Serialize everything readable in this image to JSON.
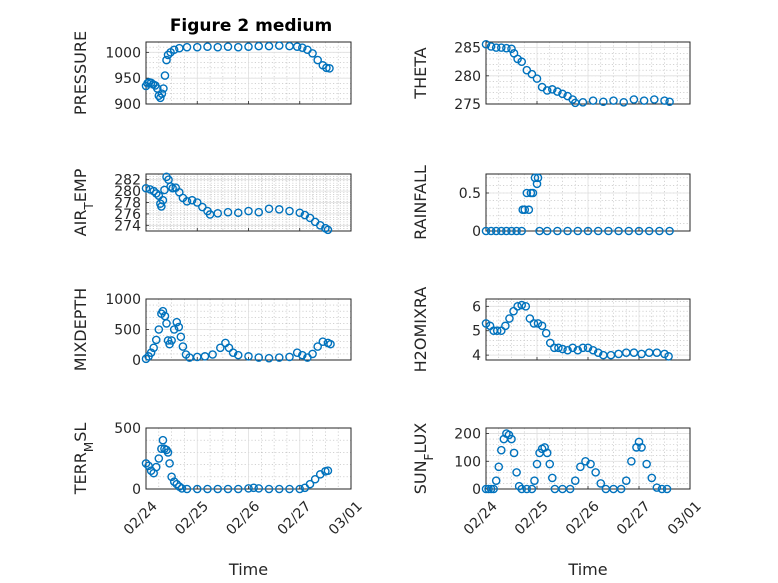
{
  "figure": {
    "title": "Figure 2 medium"
  },
  "chart_data": [
    {
      "type": "scatter",
      "ylabel": "PRESSURE",
      "ylim": [
        900,
        1020
      ],
      "yticks": [
        900,
        950,
        1000
      ],
      "title": "Figure 2 medium",
      "xlabel": "",
      "xticklabels": [],
      "color": "#0072bd",
      "grid": true,
      "points": [
        [
          0.0,
          935
        ],
        [
          0.03,
          940
        ],
        [
          0.06,
          942
        ],
        [
          0.1,
          941
        ],
        [
          0.14,
          938
        ],
        [
          0.18,
          936
        ],
        [
          0.22,
          930
        ],
        [
          0.25,
          916
        ],
        [
          0.28,
          912
        ],
        [
          0.31,
          920
        ],
        [
          0.34,
          930
        ],
        [
          0.37,
          955
        ],
        [
          0.4,
          985
        ],
        [
          0.43,
          995
        ],
        [
          0.48,
          1000
        ],
        [
          0.55,
          1005
        ],
        [
          0.65,
          1008
        ],
        [
          0.8,
          1010
        ],
        [
          1.0,
          1010
        ],
        [
          1.2,
          1011
        ],
        [
          1.4,
          1010
        ],
        [
          1.6,
          1011
        ],
        [
          1.8,
          1010
        ],
        [
          2.0,
          1011
        ],
        [
          2.2,
          1012
        ],
        [
          2.4,
          1012
        ],
        [
          2.6,
          1013
        ],
        [
          2.8,
          1012
        ],
        [
          2.95,
          1011
        ],
        [
          3.05,
          1009
        ],
        [
          3.15,
          1005
        ],
        [
          3.25,
          998
        ],
        [
          3.35,
          985
        ],
        [
          3.45,
          975
        ],
        [
          3.52,
          970
        ],
        [
          3.58,
          969
        ]
      ]
    },
    {
      "type": "scatter",
      "ylabel": "THETA",
      "ylim": [
        275,
        286
      ],
      "yticks": [
        275,
        280,
        285
      ],
      "xlabel": "",
      "xticklabels": [],
      "color": "#0072bd",
      "grid": true,
      "points": [
        [
          0.0,
          285.6
        ],
        [
          0.1,
          285.2
        ],
        [
          0.2,
          285.0
        ],
        [
          0.3,
          285.0
        ],
        [
          0.4,
          284.9
        ],
        [
          0.5,
          284.8
        ],
        [
          0.55,
          284.0
        ],
        [
          0.62,
          283.0
        ],
        [
          0.7,
          282.5
        ],
        [
          0.8,
          281.0
        ],
        [
          0.9,
          280.3
        ],
        [
          1.0,
          279.5
        ],
        [
          1.1,
          278.0
        ],
        [
          1.2,
          277.4
        ],
        [
          1.3,
          277.6
        ],
        [
          1.4,
          277.2
        ],
        [
          1.5,
          276.8
        ],
        [
          1.6,
          276.4
        ],
        [
          1.7,
          275.8
        ],
        [
          1.75,
          275.2
        ],
        [
          1.9,
          275.3
        ],
        [
          2.1,
          275.6
        ],
        [
          2.3,
          275.4
        ],
        [
          2.5,
          275.6
        ],
        [
          2.7,
          275.3
        ],
        [
          2.9,
          275.8
        ],
        [
          3.1,
          275.6
        ],
        [
          3.3,
          275.8
        ],
        [
          3.5,
          275.6
        ],
        [
          3.6,
          275.4
        ]
      ]
    },
    {
      "type": "scatter",
      "ylabel": "AIR",
      "ylabel_sub": "T",
      "ylabel_tail": "EMP",
      "ylim": [
        273,
        283
      ],
      "yticks": [
        274,
        276,
        278,
        280,
        282
      ],
      "xlabel": "",
      "xticklabels": [],
      "color": "#0072bd",
      "grid": true,
      "points": [
        [
          0.0,
          280.5
        ],
        [
          0.08,
          280.3
        ],
        [
          0.15,
          280.0
        ],
        [
          0.2,
          279.6
        ],
        [
          0.25,
          279.2
        ],
        [
          0.28,
          277.8
        ],
        [
          0.3,
          277.3
        ],
        [
          0.33,
          278.4
        ],
        [
          0.36,
          280.2
        ],
        [
          0.4,
          282.5
        ],
        [
          0.44,
          282.0
        ],
        [
          0.48,
          280.8
        ],
        [
          0.52,
          280.5
        ],
        [
          0.58,
          280.6
        ],
        [
          0.65,
          279.8
        ],
        [
          0.72,
          278.8
        ],
        [
          0.8,
          278.2
        ],
        [
          0.9,
          278.4
        ],
        [
          1.0,
          278.0
        ],
        [
          1.1,
          277.2
        ],
        [
          1.2,
          276.5
        ],
        [
          1.25,
          275.9
        ],
        [
          1.4,
          276.1
        ],
        [
          1.6,
          276.3
        ],
        [
          1.8,
          276.2
        ],
        [
          2.0,
          276.5
        ],
        [
          2.2,
          276.3
        ],
        [
          2.4,
          276.9
        ],
        [
          2.6,
          276.8
        ],
        [
          2.8,
          276.5
        ],
        [
          3.0,
          276.2
        ],
        [
          3.1,
          275.8
        ],
        [
          3.2,
          275.3
        ],
        [
          3.3,
          274.6
        ],
        [
          3.4,
          274.0
        ],
        [
          3.5,
          273.5
        ],
        [
          3.55,
          273.2
        ]
      ]
    },
    {
      "type": "scatter",
      "ylabel": "RAINFALL",
      "ylim": [
        0,
        0.75
      ],
      "yticks": [
        0,
        0.5
      ],
      "ytick_labels": [
        "0",
        "0.5"
      ],
      "xlabel": "",
      "xticklabels": [],
      "color": "#0072bd",
      "grid": true,
      "points": [
        [
          0.0,
          0
        ],
        [
          0.1,
          0
        ],
        [
          0.2,
          0
        ],
        [
          0.3,
          0
        ],
        [
          0.4,
          0
        ],
        [
          0.5,
          0
        ],
        [
          0.6,
          0
        ],
        [
          0.7,
          0
        ],
        [
          0.72,
          0.28
        ],
        [
          0.76,
          0.28
        ],
        [
          0.8,
          0.5
        ],
        [
          0.84,
          0.28
        ],
        [
          0.88,
          0.5
        ],
        [
          0.92,
          0.5
        ],
        [
          0.96,
          0.7
        ],
        [
          1.0,
          0.62
        ],
        [
          1.02,
          0.7
        ],
        [
          1.05,
          0
        ],
        [
          1.2,
          0
        ],
        [
          1.4,
          0
        ],
        [
          1.6,
          0
        ],
        [
          1.8,
          0
        ],
        [
          2.0,
          0
        ],
        [
          2.2,
          0
        ],
        [
          2.4,
          0
        ],
        [
          2.6,
          0
        ],
        [
          2.8,
          0
        ],
        [
          3.0,
          0
        ],
        [
          3.2,
          0
        ],
        [
          3.4,
          0
        ],
        [
          3.6,
          0
        ]
      ]
    },
    {
      "type": "scatter",
      "ylabel": "MIXDEPTH",
      "ylim": [
        0,
        1000
      ],
      "yticks": [
        0,
        500,
        1000
      ],
      "xlabel": "",
      "xticklabels": [],
      "color": "#0072bd",
      "grid": true,
      "points": [
        [
          0.0,
          20
        ],
        [
          0.05,
          60
        ],
        [
          0.1,
          120
        ],
        [
          0.15,
          200
        ],
        [
          0.2,
          330
        ],
        [
          0.25,
          500
        ],
        [
          0.3,
          760
        ],
        [
          0.33,
          800
        ],
        [
          0.37,
          720
        ],
        [
          0.4,
          600
        ],
        [
          0.43,
          320
        ],
        [
          0.46,
          260
        ],
        [
          0.5,
          320
        ],
        [
          0.55,
          500
        ],
        [
          0.6,
          620
        ],
        [
          0.64,
          540
        ],
        [
          0.68,
          380
        ],
        [
          0.72,
          220
        ],
        [
          0.78,
          90
        ],
        [
          0.85,
          40
        ],
        [
          1.0,
          50
        ],
        [
          1.15,
          60
        ],
        [
          1.3,
          90
        ],
        [
          1.45,
          200
        ],
        [
          1.55,
          280
        ],
        [
          1.62,
          200
        ],
        [
          1.7,
          120
        ],
        [
          1.8,
          80
        ],
        [
          2.0,
          60
        ],
        [
          2.2,
          40
        ],
        [
          2.4,
          30
        ],
        [
          2.6,
          40
        ],
        [
          2.8,
          50
        ],
        [
          2.95,
          120
        ],
        [
          3.05,
          80
        ],
        [
          3.15,
          40
        ],
        [
          3.25,
          100
        ],
        [
          3.35,
          220
        ],
        [
          3.45,
          300
        ],
        [
          3.55,
          280
        ],
        [
          3.6,
          260
        ]
      ]
    },
    {
      "type": "scatter",
      "ylabel": "H2OMIXRA",
      "ylim": [
        3.8,
        6.3
      ],
      "yticks": [
        4,
        5,
        6
      ],
      "xlabel": "",
      "xticklabels": [],
      "color": "#0072bd",
      "grid": true,
      "points": [
        [
          0.0,
          5.3
        ],
        [
          0.08,
          5.2
        ],
        [
          0.15,
          5.0
        ],
        [
          0.22,
          5.0
        ],
        [
          0.3,
          5.0
        ],
        [
          0.38,
          5.2
        ],
        [
          0.46,
          5.5
        ],
        [
          0.54,
          5.8
        ],
        [
          0.62,
          6.0
        ],
        [
          0.7,
          6.05
        ],
        [
          0.78,
          6.0
        ],
        [
          0.86,
          5.5
        ],
        [
          0.94,
          5.3
        ],
        [
          1.02,
          5.3
        ],
        [
          1.1,
          5.2
        ],
        [
          1.18,
          4.9
        ],
        [
          1.26,
          4.5
        ],
        [
          1.34,
          4.3
        ],
        [
          1.42,
          4.3
        ],
        [
          1.5,
          4.25
        ],
        [
          1.6,
          4.2
        ],
        [
          1.7,
          4.3
        ],
        [
          1.8,
          4.2
        ],
        [
          1.9,
          4.3
        ],
        [
          2.0,
          4.3
        ],
        [
          2.1,
          4.2
        ],
        [
          2.2,
          4.1
        ],
        [
          2.3,
          4.0
        ],
        [
          2.45,
          4.0
        ],
        [
          2.6,
          4.05
        ],
        [
          2.75,
          4.1
        ],
        [
          2.9,
          4.1
        ],
        [
          3.05,
          4.05
        ],
        [
          3.2,
          4.1
        ],
        [
          3.35,
          4.1
        ],
        [
          3.5,
          4.05
        ],
        [
          3.58,
          3.95
        ]
      ]
    },
    {
      "type": "scatter",
      "ylabel": "TERR",
      "ylabel_sub": "M",
      "ylabel_tail": "SL",
      "ylim": [
        0,
        500
      ],
      "yticks": [
        0,
        500
      ],
      "xlabel": "Time",
      "xlim": [
        0,
        4
      ],
      "xticks": [
        0,
        1,
        2,
        3,
        4
      ],
      "xticklabels": [
        "02/24",
        "02/25",
        "02/26",
        "02/27",
        "03/01"
      ],
      "color": "#0072bd",
      "grid": true,
      "points": [
        [
          0.0,
          210
        ],
        [
          0.05,
          190
        ],
        [
          0.1,
          150
        ],
        [
          0.15,
          130
        ],
        [
          0.2,
          180
        ],
        [
          0.25,
          250
        ],
        [
          0.3,
          330
        ],
        [
          0.33,
          400
        ],
        [
          0.36,
          330
        ],
        [
          0.4,
          320
        ],
        [
          0.43,
          300
        ],
        [
          0.46,
          210
        ],
        [
          0.5,
          100
        ],
        [
          0.55,
          60
        ],
        [
          0.6,
          40
        ],
        [
          0.65,
          20
        ],
        [
          0.7,
          5
        ],
        [
          0.8,
          0
        ],
        [
          1.0,
          0
        ],
        [
          1.2,
          0
        ],
        [
          1.4,
          0
        ],
        [
          1.6,
          0
        ],
        [
          1.8,
          0
        ],
        [
          2.0,
          5
        ],
        [
          2.1,
          10
        ],
        [
          2.2,
          5
        ],
        [
          2.4,
          0
        ],
        [
          2.6,
          0
        ],
        [
          2.8,
          0
        ],
        [
          3.0,
          0
        ],
        [
          3.1,
          10
        ],
        [
          3.2,
          40
        ],
        [
          3.3,
          80
        ],
        [
          3.4,
          120
        ],
        [
          3.5,
          145
        ],
        [
          3.55,
          150
        ]
      ]
    },
    {
      "type": "scatter",
      "ylabel": "SUN",
      "ylabel_sub": "F",
      "ylabel_tail": "LUX",
      "ylim": [
        0,
        220
      ],
      "yticks": [
        0,
        100,
        200
      ],
      "xlabel": "Time",
      "xlim": [
        0,
        4
      ],
      "xticks": [
        0,
        1,
        2,
        3,
        4
      ],
      "xticklabels": [
        "02/24",
        "02/25",
        "02/26",
        "02/27",
        "03/01"
      ],
      "color": "#0072bd",
      "grid": true,
      "points": [
        [
          0.0,
          0
        ],
        [
          0.05,
          0
        ],
        [
          0.1,
          0
        ],
        [
          0.15,
          0
        ],
        [
          0.2,
          30
        ],
        [
          0.25,
          80
        ],
        [
          0.3,
          140
        ],
        [
          0.35,
          180
        ],
        [
          0.4,
          200
        ],
        [
          0.45,
          195
        ],
        [
          0.5,
          180
        ],
        [
          0.55,
          130
        ],
        [
          0.6,
          60
        ],
        [
          0.65,
          10
        ],
        [
          0.7,
          0
        ],
        [
          0.8,
          0
        ],
        [
          0.9,
          0
        ],
        [
          0.95,
          30
        ],
        [
          1.0,
          90
        ],
        [
          1.05,
          130
        ],
        [
          1.1,
          145
        ],
        [
          1.15,
          150
        ],
        [
          1.2,
          130
        ],
        [
          1.25,
          90
        ],
        [
          1.3,
          40
        ],
        [
          1.35,
          0
        ],
        [
          1.5,
          0
        ],
        [
          1.65,
          0
        ],
        [
          1.75,
          30
        ],
        [
          1.85,
          80
        ],
        [
          1.95,
          100
        ],
        [
          2.05,
          90
        ],
        [
          2.15,
          60
        ],
        [
          2.25,
          20
        ],
        [
          2.35,
          0
        ],
        [
          2.5,
          0
        ],
        [
          2.65,
          0
        ],
        [
          2.75,
          30
        ],
        [
          2.85,
          100
        ],
        [
          2.95,
          150
        ],
        [
          3.0,
          170
        ],
        [
          3.05,
          150
        ],
        [
          3.15,
          90
        ],
        [
          3.25,
          40
        ],
        [
          3.35,
          5
        ],
        [
          3.45,
          0
        ],
        [
          3.55,
          0
        ]
      ]
    }
  ]
}
